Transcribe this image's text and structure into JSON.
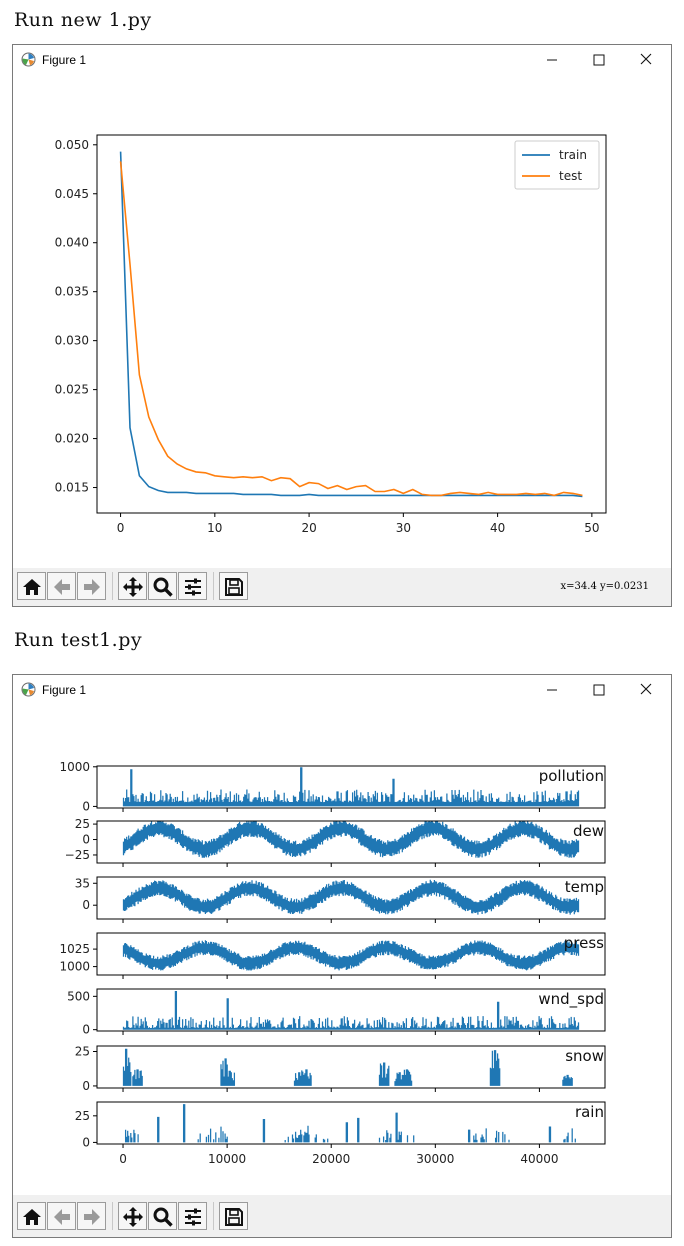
{
  "run1_heading": "Run new 1.py",
  "run2_heading": "Run test1.py",
  "window1": {
    "title": "Figure 1",
    "status": "x=34.4 y=0.0231",
    "toolbar_icons": [
      "home-icon",
      "back-arrow-icon",
      "forward-arrow-icon",
      "pan-move-icon",
      "zoom-magnifier-icon",
      "configure-subplots-icon",
      "save-floppy-icon"
    ]
  },
  "window2": {
    "title": "Figure 1",
    "toolbar_icons": [
      "home-icon",
      "back-arrow-icon",
      "forward-arrow-icon",
      "pan-move-icon",
      "zoom-magnifier-icon",
      "configure-subplots-icon",
      "save-floppy-icon"
    ]
  },
  "chart_data": [
    {
      "type": "line",
      "title": "",
      "xlabel": "",
      "ylabel": "",
      "xlim": [
        -2.5,
        51.5
      ],
      "ylim": [
        0.0124,
        0.051
      ],
      "xticks": [
        0,
        10,
        20,
        30,
        40,
        50
      ],
      "yticks": [
        0.015,
        0.02,
        0.025,
        0.03,
        0.035,
        0.04,
        0.045,
        0.05
      ],
      "ytick_labels": [
        "0.015",
        "0.020",
        "0.025",
        "0.030",
        "0.035",
        "0.040",
        "0.045",
        "0.050"
      ],
      "legend": "top-right",
      "colors": {
        "train": "#1f77b4",
        "test": "#ff7f0e"
      },
      "series": [
        {
          "name": "train",
          "values": [
            0.0493,
            0.0211,
            0.0162,
            0.0151,
            0.0147,
            0.0145,
            0.0145,
            0.0145,
            0.0144,
            0.0144,
            0.0144,
            0.0144,
            0.0144,
            0.0143,
            0.0143,
            0.0143,
            0.0143,
            0.0142,
            0.0142,
            0.0142,
            0.0143,
            0.0142,
            0.0142,
            0.0142,
            0.0142,
            0.0142,
            0.0142,
            0.0142,
            0.0142,
            0.0142,
            0.0142,
            0.0142,
            0.0142,
            0.0142,
            0.0142,
            0.0142,
            0.0142,
            0.0142,
            0.0142,
            0.0142,
            0.0142,
            0.0142,
            0.0142,
            0.0142,
            0.0142,
            0.0142,
            0.0142,
            0.0142,
            0.0142,
            0.0141
          ]
        },
        {
          "name": "test",
          "values": [
            0.0483,
            0.0378,
            0.0265,
            0.0222,
            0.0199,
            0.0182,
            0.0174,
            0.0169,
            0.0166,
            0.0165,
            0.0162,
            0.0161,
            0.016,
            0.0161,
            0.016,
            0.0161,
            0.0157,
            0.016,
            0.0159,
            0.0151,
            0.0155,
            0.0154,
            0.0149,
            0.0152,
            0.0148,
            0.0151,
            0.0152,
            0.0146,
            0.0146,
            0.0148,
            0.0144,
            0.0148,
            0.0143,
            0.0142,
            0.0142,
            0.0144,
            0.0145,
            0.0144,
            0.0143,
            0.0145,
            0.0143,
            0.0143,
            0.0143,
            0.0144,
            0.0143,
            0.0144,
            0.0142,
            0.0145,
            0.0144,
            0.0142
          ]
        }
      ]
    },
    {
      "type": "line",
      "title": "",
      "xlabel": "",
      "xlim": [
        -2500,
        46300
      ],
      "xticks": [
        0,
        10000,
        20000,
        30000,
        40000
      ],
      "n_points": 43800,
      "color": "#1f77b4",
      "subplots": [
        {
          "name": "pollution",
          "ylim": [
            -40,
            1020
          ],
          "yticks": [
            0,
            1000
          ],
          "ytick_labels": [
            "0",
            "1000"
          ],
          "pattern": "spiky",
          "base": 110,
          "amp": 320,
          "peaks": [
            [
              750,
              940
            ],
            [
              17100,
              990
            ],
            [
              25950,
              700
            ],
            [
              42600,
              380
            ]
          ]
        },
        {
          "name": "dew",
          "ylim": [
            -38,
            30
          ],
          "yticks": [
            -25,
            0,
            25
          ],
          "ytick_labels": [
            "−25",
            "0",
            "25"
          ],
          "pattern": "seasonal",
          "base": 1.5,
          "amp": 17,
          "noise": 12
        },
        {
          "name": "temp",
          "ylim": [
            -22,
            45
          ],
          "yticks": [
            0,
            35
          ],
          "ytick_labels": [
            "0",
            "35"
          ],
          "pattern": "seasonal",
          "base": 12.5,
          "amp": 15,
          "noise": 11
        },
        {
          "name": "press",
          "ylim": [
            988,
            1048
          ],
          "yticks": [
            1000,
            1025
          ],
          "ytick_labels": [
            "1000",
            "1025"
          ],
          "pattern": "seasonal_inv",
          "base": 1016,
          "amp": 11,
          "noise": 9
        },
        {
          "name": "wnd_spd",
          "ylim": [
            -20,
            610
          ],
          "yticks": [
            0,
            500
          ],
          "ytick_labels": [
            "0",
            "500"
          ],
          "pattern": "spiky",
          "base": 25,
          "amp": 180,
          "peaks": [
            [
              5000,
              580
            ],
            [
              10000,
              470
            ],
            [
              36000,
              420
            ]
          ]
        },
        {
          "name": "snow",
          "ylim": [
            -1.5,
            29
          ],
          "yticks": [
            0,
            25
          ],
          "ytick_labels": [
            "0",
            "25"
          ],
          "pattern": "bursty",
          "peaks": [
            [
              200,
              27
            ],
            [
              1300,
              12
            ],
            [
              9800,
              20
            ],
            [
              10200,
              11
            ],
            [
              16900,
              10
            ],
            [
              17600,
              12
            ],
            [
              25000,
              17
            ],
            [
              26500,
              10
            ],
            [
              27200,
              12
            ],
            [
              35700,
              26
            ],
            [
              42700,
              8
            ]
          ]
        },
        {
          "name": "rain",
          "ylim": [
            -1.5,
            38
          ],
          "yticks": [
            0,
            25
          ],
          "ytick_labels": [
            "0",
            "25"
          ],
          "pattern": "bursty_season",
          "peaks": [
            [
              5800,
              36
            ],
            [
              3300,
              24
            ],
            [
              13500,
              22
            ],
            [
              21500,
              19
            ],
            [
              22500,
              23
            ],
            [
              26200,
              28
            ],
            [
              33200,
              12
            ],
            [
              41000,
              15
            ]
          ]
        }
      ]
    }
  ]
}
